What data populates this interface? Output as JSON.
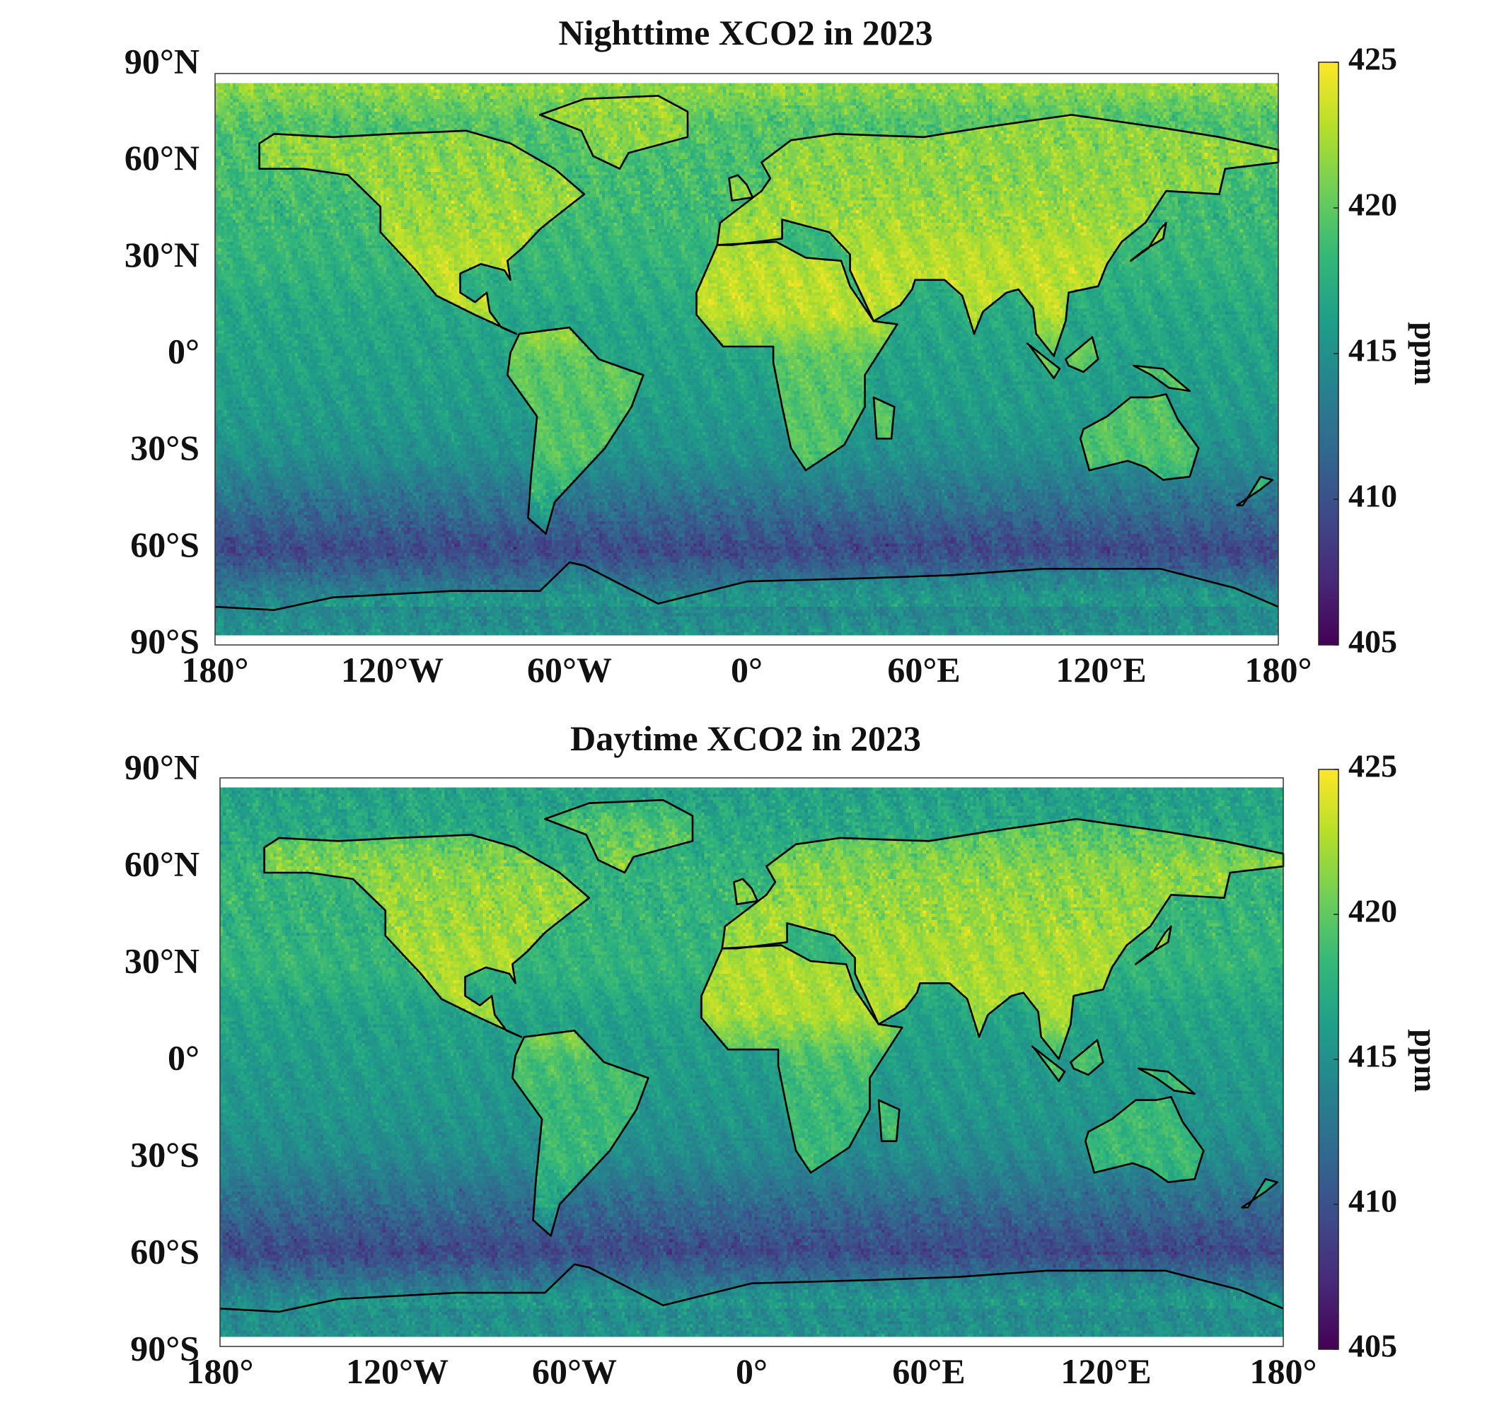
{
  "chart_data": [
    {
      "type": "heatmap",
      "title": "Nighttime XCO2 in 2023",
      "xlim": [
        -180,
        180
      ],
      "ylim": [
        -90,
        90
      ],
      "x_ticks": [
        "180°",
        "120°W",
        "60°W",
        "0°",
        "60°E",
        "120°E",
        "180°"
      ],
      "y_ticks": [
        "90°N",
        "60°N",
        "30°N",
        "0°",
        "30°S",
        "60°S",
        "90°S"
      ],
      "colorbar": {
        "label": "ppm",
        "range": [
          405,
          425
        ],
        "ticks": [
          "425",
          "420",
          "415",
          "410",
          "405"
        ],
        "colormap": "viridis"
      },
      "latitude_band_means": [
        {
          "lat": 85,
          "ocean": 421.5,
          "land": 422.5
        },
        {
          "lat": 75,
          "ocean": 419.5,
          "land": 421.5
        },
        {
          "lat": 60,
          "ocean": 419.0,
          "land": 421.5
        },
        {
          "lat": 45,
          "ocean": 418.5,
          "land": 422.0
        },
        {
          "lat": 30,
          "ocean": 418.0,
          "land": 423.0
        },
        {
          "lat": 15,
          "ocean": 417.0,
          "land": 423.0
        },
        {
          "lat": 0,
          "ocean": 416.5,
          "land": 420.0
        },
        {
          "lat": -15,
          "ocean": 416.0,
          "land": 419.5
        },
        {
          "lat": -30,
          "ocean": 415.0,
          "land": 419.5
        },
        {
          "lat": -45,
          "ocean": 412.5,
          "land": 417.0
        },
        {
          "lat": -60,
          "ocean": 409.5,
          "land": 412.0
        },
        {
          "lat": -75,
          "ocean": 414.0,
          "land": 415.5
        },
        {
          "lat": -85,
          "ocean": 415.0,
          "land": 415.5
        }
      ]
    },
    {
      "type": "heatmap",
      "title": "Daytime XCO2 in 2023",
      "xlim": [
        -180,
        180
      ],
      "ylim": [
        -90,
        90
      ],
      "x_ticks": [
        "180°",
        "120°W",
        "60°W",
        "0°",
        "60°E",
        "120°E",
        "180°"
      ],
      "y_ticks": [
        "90°N",
        "60°N",
        "30°N",
        "0°",
        "30°S",
        "60°S",
        "90°S"
      ],
      "colorbar": {
        "label": "ppm",
        "range": [
          405,
          425
        ],
        "ticks": [
          "425",
          "420",
          "415",
          "410",
          "405"
        ],
        "colormap": "viridis"
      },
      "latitude_band_means": [
        {
          "lat": 85,
          "ocean": 416.5,
          "land": 417.5
        },
        {
          "lat": 75,
          "ocean": 417.0,
          "land": 419.5
        },
        {
          "lat": 60,
          "ocean": 418.0,
          "land": 421.5
        },
        {
          "lat": 45,
          "ocean": 418.0,
          "land": 422.0
        },
        {
          "lat": 30,
          "ocean": 418.0,
          "land": 422.5
        },
        {
          "lat": 15,
          "ocean": 416.5,
          "land": 422.5
        },
        {
          "lat": 0,
          "ocean": 416.0,
          "land": 419.0
        },
        {
          "lat": -15,
          "ocean": 415.5,
          "land": 418.5
        },
        {
          "lat": -30,
          "ocean": 414.5,
          "land": 418.5
        },
        {
          "lat": -45,
          "ocean": 412.0,
          "land": 416.5
        },
        {
          "lat": -60,
          "ocean": 409.5,
          "land": 411.5
        },
        {
          "lat": -75,
          "ocean": 414.5,
          "land": 415.5
        },
        {
          "lat": -85,
          "ocean": 415.0,
          "land": 415.5
        }
      ]
    }
  ]
}
